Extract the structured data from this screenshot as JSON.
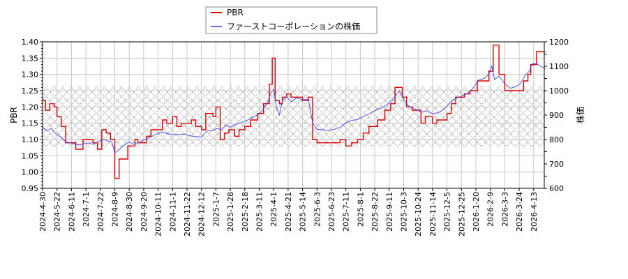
{
  "chart_data": {
    "type": "line",
    "title": "",
    "legend": {
      "position": "top-center",
      "entries": [
        {
          "label": "PBR",
          "color": "#dd0000"
        },
        {
          "label": "ファーストコーポレーションの株価",
          "color": "#4444ee"
        }
      ]
    },
    "xlabel": "",
    "ylabel_left": "PBR",
    "ylabel_right": "株価",
    "ylim_left": [
      0.95,
      1.4
    ],
    "ylim_right": [
      600,
      1200
    ],
    "yticks_left": [
      "0.95",
      "1.00",
      "1.05",
      "1.10",
      "1.15",
      "1.20",
      "1.25",
      "1.30",
      "1.35",
      "1.40"
    ],
    "yticks_right": [
      "600",
      "700",
      "800",
      "900",
      "1000",
      "1100",
      "1200"
    ],
    "grid": true,
    "shaded_band_pbr": [
      1.076,
      1.263
    ],
    "x_tick_labels": [
      "2024-4-30",
      "2024-5-22",
      "2024-6-11",
      "2024-7-1",
      "2024-7-22",
      "2024-8-9",
      "2024-8-30",
      "2024-9-20",
      "2024-10-11",
      "2024-11-1",
      "2024-11-22",
      "2024-12-12",
      "2025-1-7",
      "2025-1-28",
      "2025-2-18",
      "2025-3-11",
      "2025-4-1",
      "2025-4-21",
      "2025-5-14",
      "2025-6-3",
      "2025-6-23",
      "2025-7-11",
      "2025-8-1",
      "2025-8-22",
      "2025-9-11",
      "2025-10-3",
      "2025-10-24",
      "2025-11-14",
      "2025-12-5",
      "2025-12-25",
      "2026-1-20",
      "2026-2-9",
      "2026-3-3",
      "2026-3-24",
      "2026-4-13"
    ],
    "series": [
      {
        "name": "PBR",
        "axis": "left",
        "step": true,
        "points": [
          [
            0,
            1.22
          ],
          [
            0.2,
            1.19
          ],
          [
            0.5,
            1.21
          ],
          [
            0.8,
            1.2
          ],
          [
            1.0,
            1.17
          ],
          [
            1.3,
            1.14
          ],
          [
            1.6,
            1.09
          ],
          [
            2.3,
            1.07
          ],
          [
            2.8,
            1.1
          ],
          [
            3.5,
            1.09
          ],
          [
            3.8,
            1.07
          ],
          [
            4.1,
            1.13
          ],
          [
            4.4,
            1.12
          ],
          [
            4.7,
            1.1
          ],
          [
            5.0,
            0.98
          ],
          [
            5.3,
            1.04
          ],
          [
            5.9,
            1.08
          ],
          [
            6.4,
            1.1
          ],
          [
            6.6,
            1.09
          ],
          [
            7.2,
            1.11
          ],
          [
            7.5,
            1.13
          ],
          [
            8.3,
            1.16
          ],
          [
            8.6,
            1.15
          ],
          [
            9.0,
            1.17
          ],
          [
            9.3,
            1.14
          ],
          [
            9.6,
            1.15
          ],
          [
            10.3,
            1.16
          ],
          [
            10.6,
            1.14
          ],
          [
            11.0,
            1.13
          ],
          [
            11.3,
            1.18
          ],
          [
            11.8,
            1.17
          ],
          [
            12.0,
            1.2
          ],
          [
            12.3,
            1.1
          ],
          [
            12.6,
            1.12
          ],
          [
            12.9,
            1.13
          ],
          [
            13.3,
            1.11
          ],
          [
            13.6,
            1.13
          ],
          [
            14.0,
            1.14
          ],
          [
            14.4,
            1.16
          ],
          [
            14.9,
            1.18
          ],
          [
            15.3,
            1.21
          ],
          [
            15.7,
            1.27
          ],
          [
            15.9,
            1.35
          ],
          [
            16.1,
            1.22
          ],
          [
            16.4,
            1.21
          ],
          [
            16.6,
            1.23
          ],
          [
            16.9,
            1.24
          ],
          [
            17.2,
            1.23
          ],
          [
            17.8,
            1.23
          ],
          [
            18.0,
            1.22
          ],
          [
            18.4,
            1.23
          ],
          [
            18.7,
            1.1
          ],
          [
            19.0,
            1.09
          ],
          [
            19.5,
            1.09
          ],
          [
            20.3,
            1.09
          ],
          [
            20.6,
            1.1
          ],
          [
            21.0,
            1.08
          ],
          [
            21.4,
            1.09
          ],
          [
            21.8,
            1.1
          ],
          [
            22.2,
            1.12
          ],
          [
            22.6,
            1.14
          ],
          [
            23.2,
            1.16
          ],
          [
            23.7,
            1.19
          ],
          [
            24.1,
            1.21
          ],
          [
            24.4,
            1.26
          ],
          [
            24.9,
            1.23
          ],
          [
            25.2,
            1.2
          ],
          [
            25.6,
            1.19
          ],
          [
            26.2,
            1.15
          ],
          [
            26.5,
            1.17
          ],
          [
            27.0,
            1.15
          ],
          [
            27.3,
            1.16
          ],
          [
            28.0,
            1.18
          ],
          [
            28.3,
            1.21
          ],
          [
            28.6,
            1.23
          ],
          [
            29.2,
            1.24
          ],
          [
            29.6,
            1.25
          ],
          [
            30.1,
            1.28
          ],
          [
            30.6,
            1.28
          ],
          [
            30.9,
            1.31
          ],
          [
            31.2,
            1.39
          ],
          [
            31.6,
            1.3
          ],
          [
            32.0,
            1.25
          ],
          [
            32.7,
            1.25
          ],
          [
            33.3,
            1.28
          ],
          [
            33.6,
            1.3
          ],
          [
            33.8,
            1.33
          ],
          [
            34.2,
            1.37
          ],
          [
            34.8,
            1.37
          ]
        ]
      },
      {
        "name": "ファーストコーポレーションの株価",
        "axis": "right",
        "step": false,
        "points": [
          [
            0,
            850
          ],
          [
            0.3,
            835
          ],
          [
            0.6,
            845
          ],
          [
            0.8,
            830
          ],
          [
            1.0,
            820
          ],
          [
            1.3,
            808
          ],
          [
            1.6,
            790
          ],
          [
            2.0,
            785
          ],
          [
            2.3,
            780
          ],
          [
            2.6,
            778
          ],
          [
            2.8,
            782
          ],
          [
            3.2,
            786
          ],
          [
            3.5,
            780
          ],
          [
            3.8,
            790
          ],
          [
            4.0,
            795
          ],
          [
            4.2,
            800
          ],
          [
            4.5,
            795
          ],
          [
            4.8,
            790
          ],
          [
            5.0,
            745
          ],
          [
            5.2,
            755
          ],
          [
            5.5,
            770
          ],
          [
            5.8,
            782
          ],
          [
            6.0,
            790
          ],
          [
            6.3,
            780
          ],
          [
            6.6,
            785
          ],
          [
            7.0,
            798
          ],
          [
            7.4,
            808
          ],
          [
            7.8,
            820
          ],
          [
            8.2,
            830
          ],
          [
            8.6,
            825
          ],
          [
            9.0,
            820
          ],
          [
            9.4,
            820
          ],
          [
            9.8,
            823
          ],
          [
            10.2,
            815
          ],
          [
            10.6,
            812
          ],
          [
            11.0,
            810
          ],
          [
            11.4,
            835
          ],
          [
            11.8,
            838
          ],
          [
            12.1,
            845
          ],
          [
            12.4,
            840
          ],
          [
            12.7,
            860
          ],
          [
            13.0,
            850
          ],
          [
            13.4,
            862
          ],
          [
            13.8,
            870
          ],
          [
            14.2,
            880
          ],
          [
            14.6,
            892
          ],
          [
            15.0,
            905
          ],
          [
            15.3,
            925
          ],
          [
            15.6,
            955
          ],
          [
            15.8,
            990
          ],
          [
            16.0,
            1005
          ],
          [
            16.2,
            930
          ],
          [
            16.4,
            900
          ],
          [
            16.6,
            960
          ],
          [
            16.9,
            975
          ],
          [
            17.2,
            955
          ],
          [
            17.6,
            970
          ],
          [
            18.0,
            962
          ],
          [
            18.4,
            965
          ],
          [
            18.7,
            868
          ],
          [
            19.0,
            842
          ],
          [
            19.4,
            840
          ],
          [
            19.8,
            838
          ],
          [
            20.2,
            842
          ],
          [
            20.6,
            850
          ],
          [
            21.0,
            868
          ],
          [
            21.4,
            878
          ],
          [
            21.8,
            882
          ],
          [
            22.2,
            893
          ],
          [
            22.6,
            905
          ],
          [
            23.0,
            918
          ],
          [
            23.4,
            928
          ],
          [
            23.8,
            940
          ],
          [
            24.2,
            962
          ],
          [
            24.5,
            985
          ],
          [
            24.7,
            998
          ],
          [
            24.9,
            975
          ],
          [
            25.1,
            955
          ],
          [
            25.4,
            935
          ],
          [
            25.8,
            925
          ],
          [
            26.2,
            912
          ],
          [
            26.6,
            918
          ],
          [
            27.0,
            905
          ],
          [
            27.4,
            910
          ],
          [
            27.8,
            925
          ],
          [
            28.2,
            950
          ],
          [
            28.6,
            968
          ],
          [
            29.0,
            978
          ],
          [
            29.4,
            988
          ],
          [
            29.8,
            1010
          ],
          [
            30.2,
            1045
          ],
          [
            30.6,
            1050
          ],
          [
            30.9,
            1068
          ],
          [
            31.1,
            1100
          ],
          [
            31.3,
            1045
          ],
          [
            31.6,
            1060
          ],
          [
            32.0,
            1028
          ],
          [
            32.4,
            1010
          ],
          [
            32.8,
            1018
          ],
          [
            33.1,
            1030
          ],
          [
            33.4,
            1062
          ],
          [
            33.7,
            1080
          ],
          [
            33.9,
            1110
          ],
          [
            34.2,
            1110
          ],
          [
            34.5,
            1100
          ],
          [
            34.8,
            1090
          ]
        ]
      }
    ]
  }
}
